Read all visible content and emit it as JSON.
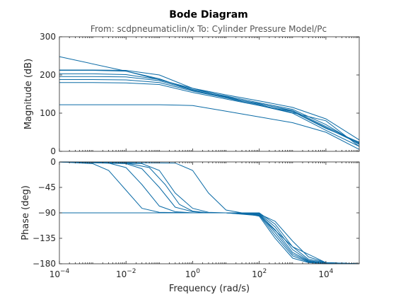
{
  "chart_data": {
    "type": "line",
    "title": "Bode Diagram",
    "subtitle": "From: scdpneumaticlin/x  To: Cylinder Pressure Model/Pc",
    "xlabel": "Frequency  (rad/s)",
    "xscale": "log",
    "xlim": [
      0.0001,
      100000
    ],
    "x_ticks": [
      {
        "value": 0.0001,
        "base": "10",
        "exp": "-4"
      },
      {
        "value": 0.01,
        "base": "10",
        "exp": "-2"
      },
      {
        "value": 1,
        "base": "10",
        "exp": "0"
      },
      {
        "value": 100,
        "base": "10",
        "exp": "2"
      },
      {
        "value": 10000,
        "base": "10",
        "exp": "4"
      }
    ],
    "magnitude": {
      "ylabel": "Magnitude (dB)",
      "ylim": [
        0,
        300
      ],
      "y_ticks": [
        0,
        100,
        200,
        300
      ],
      "series": [
        {
          "x": [
            0.0001,
            0.01,
            1,
            100,
            10000,
            100000
          ],
          "y": [
            248,
            210,
            165,
            122,
            80,
            13
          ]
        },
        {
          "x": [
            0.0001,
            0.001,
            0.01,
            0.1,
            1,
            10,
            100,
            1000,
            10000,
            100000
          ],
          "y": [
            212,
            212,
            210,
            190,
            160,
            140,
            120,
            100,
            55,
            13
          ]
        },
        {
          "x": [
            0.0001,
            0.001,
            0.01,
            0.1,
            1,
            10,
            100,
            1000,
            10000,
            100000
          ],
          "y": [
            203,
            203,
            201,
            188,
            162,
            145,
            127,
            110,
            70,
            18
          ]
        },
        {
          "x": [
            0.0001,
            0.001,
            0.01,
            0.1,
            1,
            10,
            100,
            1000,
            10000,
            100000
          ],
          "y": [
            196,
            196,
            195,
            185,
            160,
            142,
            124,
            107,
            65,
            22
          ]
        },
        {
          "x": [
            0.0001,
            0.001,
            0.01,
            0.1,
            1,
            10,
            100,
            1000,
            10000,
            100000
          ],
          "y": [
            188,
            188,
            187,
            180,
            158,
            140,
            125,
            105,
            62,
            20
          ]
        },
        {
          "x": [
            0.0001,
            0.001,
            0.01,
            0.1,
            1,
            10,
            100,
            1000,
            10000,
            100000
          ],
          "y": [
            180,
            180,
            179,
            175,
            154,
            137,
            120,
            104,
            60,
            24
          ]
        },
        {
          "x": [
            0.0001,
            0.001,
            0.01,
            0.1,
            1,
            10,
            100,
            1000,
            10000,
            100000
          ],
          "y": [
            122,
            122,
            122,
            122,
            120,
            105,
            90,
            75,
            50,
            5
          ]
        },
        {
          "x": [
            0.0001,
            0.001,
            0.01,
            0.1,
            1,
            10,
            100,
            1000,
            10000,
            100000
          ],
          "y": [
            213,
            213,
            212,
            200,
            165,
            148,
            132,
            115,
            85,
            30
          ]
        }
      ]
    },
    "phase": {
      "ylabel": "Phase (deg)",
      "ylim": [
        -180,
        0
      ],
      "y_ticks": [
        0,
        -45,
        -90,
        -135,
        -180
      ],
      "series": [
        {
          "x": [
            0.0001,
            0.001,
            0.01,
            0.1,
            1,
            10,
            100,
            1000,
            10000,
            100000
          ],
          "y": [
            -90,
            -90,
            -90,
            -90,
            -90,
            -90,
            -95,
            -150,
            -178,
            -180
          ]
        },
        {
          "x": [
            0.0001,
            0.001,
            0.003,
            0.01,
            0.03,
            0.1,
            1,
            10,
            100,
            300,
            1000,
            3000,
            10000,
            100000
          ],
          "y": [
            0,
            -3,
            -15,
            -50,
            -82,
            -89,
            -90,
            -90,
            -90,
            -110,
            -150,
            -172,
            -178,
            -180
          ]
        },
        {
          "x": [
            0.0001,
            0.003,
            0.01,
            0.03,
            0.1,
            0.3,
            1,
            10,
            100,
            300,
            1000,
            3000,
            10000,
            100000
          ],
          "y": [
            0,
            -2,
            -10,
            -40,
            -78,
            -88,
            -90,
            -90,
            -91,
            -115,
            -155,
            -174,
            -179,
            -180
          ]
        },
        {
          "x": [
            0.0001,
            0.01,
            0.03,
            0.1,
            0.3,
            1,
            3,
            10,
            100,
            300,
            1000,
            3000,
            10000,
            100000
          ],
          "y": [
            0,
            -3,
            -12,
            -45,
            -80,
            -88,
            -90,
            -90,
            -92,
            -120,
            -160,
            -175,
            -179,
            -180
          ]
        },
        {
          "x": [
            0.0001,
            0.01,
            0.05,
            0.15,
            0.4,
            1,
            3,
            10,
            100,
            300,
            1000,
            3000,
            10000,
            100000
          ],
          "y": [
            0,
            -2,
            -10,
            -40,
            -75,
            -87,
            -90,
            -90,
            -93,
            -125,
            -163,
            -176,
            -179,
            -180
          ]
        },
        {
          "x": [
            0.0001,
            0.03,
            0.1,
            0.3,
            1,
            3,
            10,
            100,
            300,
            1000,
            3000,
            10000,
            100000
          ],
          "y": [
            0,
            -3,
            -15,
            -55,
            -82,
            -89,
            -90,
            -94,
            -130,
            -166,
            -177,
            -180,
            -180
          ]
        },
        {
          "x": [
            0.0001,
            0.3,
            1,
            3,
            10,
            30,
            100,
            300,
            1000,
            3000,
            10000,
            100000
          ],
          "y": [
            0,
            -2,
            -15,
            -55,
            -85,
            -90,
            -96,
            -135,
            -170,
            -178,
            -180,
            -180
          ]
        },
        {
          "x": [
            0.0001,
            0.001,
            0.01,
            0.1,
            1,
            10,
            100,
            300,
            1000,
            3000,
            10000,
            100000
          ],
          "y": [
            -90,
            -90,
            -90,
            -90,
            -90,
            -90,
            -92,
            -105,
            -140,
            -168,
            -178,
            -180
          ]
        }
      ]
    }
  }
}
